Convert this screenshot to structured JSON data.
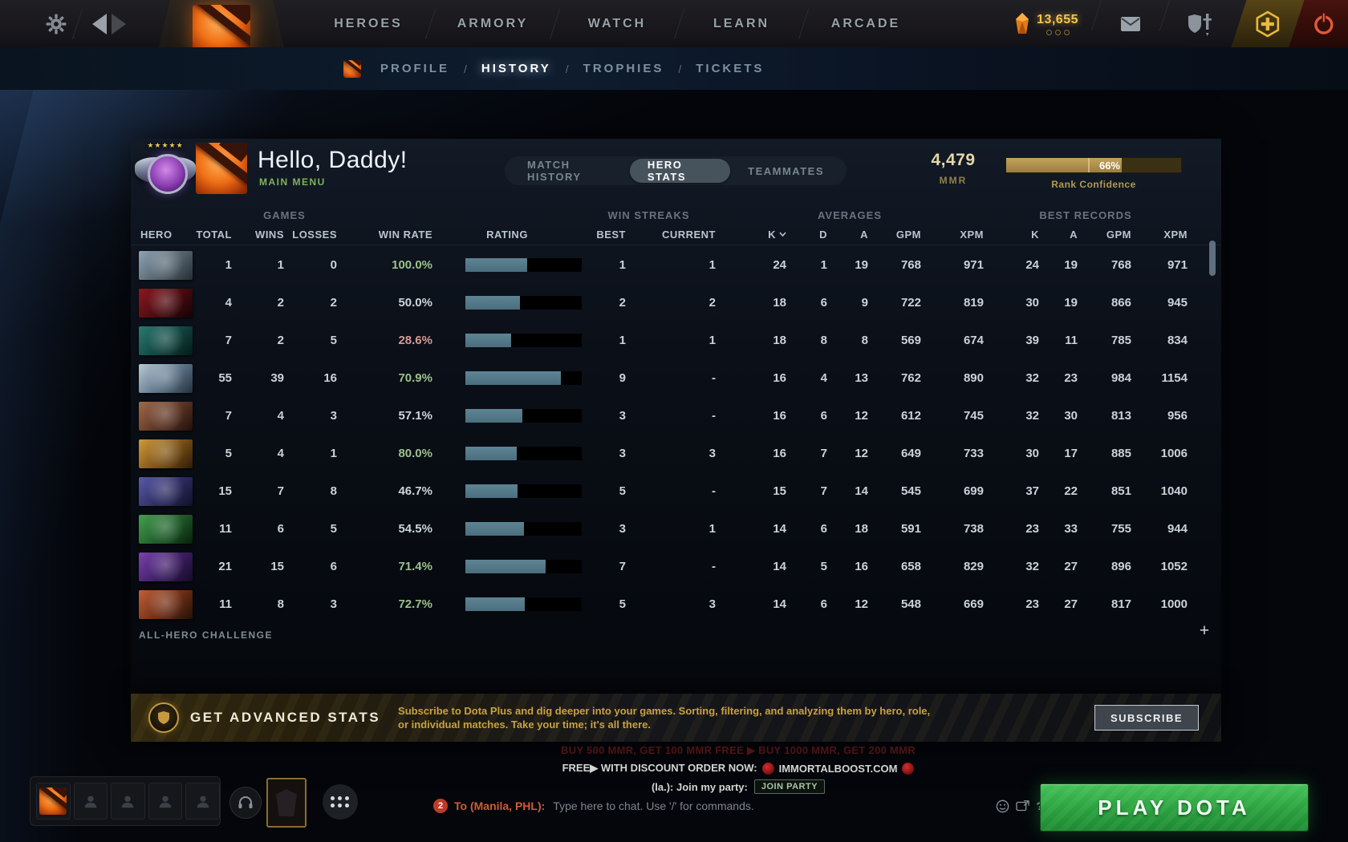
{
  "topbar": {
    "nav": [
      {
        "label": "HEROES"
      },
      {
        "label": "ARMORY"
      },
      {
        "label": "WATCH"
      },
      {
        "label": "LEARN"
      },
      {
        "label": "ARCADE"
      }
    ],
    "currency_amount": "13,655"
  },
  "subnav": {
    "separator": "/",
    "items": [
      {
        "label": "PROFILE",
        "active": false
      },
      {
        "label": "HISTORY",
        "active": true
      },
      {
        "label": "TROPHIES",
        "active": false
      },
      {
        "label": "TICKETS",
        "active": false
      }
    ]
  },
  "profile": {
    "greeting": "Hello, Daddy!",
    "subtitle": "MAIN MENU"
  },
  "tabs": [
    {
      "label": "MATCH HISTORY",
      "active": false
    },
    {
      "label": "HERO STATS",
      "active": true
    },
    {
      "label": "TEAMMATES",
      "active": false
    }
  ],
  "mmr": {
    "value": "4,479",
    "label": "MMR"
  },
  "rank_confidence": {
    "percent": "66%",
    "label": "Rank Confidence",
    "fill": 0.66
  },
  "table": {
    "groups": [
      "GAMES",
      "WIN STREAKS",
      "AVERAGES",
      "BEST RECORDS"
    ],
    "columns": [
      "HERO",
      "TOTAL",
      "WINS",
      "LOSSES",
      "WIN RATE",
      "RATING",
      "BEST",
      "CURRENT",
      "K",
      "D",
      "A",
      "GPM",
      "XPM",
      "K",
      "A",
      "GPM",
      "XPM"
    ],
    "sorted_column": "K",
    "rows": [
      {
        "portrait": [
          "#8fa3b5",
          "#54646f",
          "#262d33"
        ],
        "total": "1",
        "wins": "1",
        "losses": "0",
        "win_rate": "100.0%",
        "win_rate_tone": "green",
        "rating_fill": 0.53,
        "best": "1",
        "current": "1",
        "k": "24",
        "d": "1",
        "a": "19",
        "gpm": "768",
        "xpm": "971",
        "rk": "24",
        "ra": "19",
        "rgpm": "768",
        "rxpm": "971"
      },
      {
        "portrait": [
          "#8a1820",
          "#4a0a10",
          "#120305"
        ],
        "total": "4",
        "wins": "2",
        "losses": "2",
        "win_rate": "50.0%",
        "win_rate_tone": "neutral",
        "rating_fill": 0.47,
        "best": "2",
        "current": "2",
        "k": "18",
        "d": "6",
        "a": "9",
        "gpm": "722",
        "xpm": "819",
        "rk": "30",
        "ra": "19",
        "rgpm": "866",
        "rxpm": "945"
      },
      {
        "portrait": [
          "#2b7a72",
          "#114540",
          "#051a18"
        ],
        "total": "7",
        "wins": "2",
        "losses": "5",
        "win_rate": "28.6%",
        "win_rate_tone": "red",
        "rating_fill": 0.39,
        "best": "1",
        "current": "1",
        "k": "18",
        "d": "8",
        "a": "8",
        "gpm": "569",
        "xpm": "674",
        "rk": "39",
        "ra": "11",
        "rgpm": "785",
        "rxpm": "834"
      },
      {
        "portrait": [
          "#b9c9d6",
          "#5d7488",
          "#23303d"
        ],
        "total": "55",
        "wins": "39",
        "losses": "16",
        "win_rate": "70.9%",
        "win_rate_tone": "green",
        "rating_fill": 0.82,
        "best": "9",
        "current": "-",
        "k": "16",
        "d": "4",
        "a": "13",
        "gpm": "762",
        "xpm": "890",
        "rk": "32",
        "ra": "23",
        "rgpm": "984",
        "rxpm": "1154"
      },
      {
        "portrait": [
          "#a06a4a",
          "#5c3424",
          "#20100a"
        ],
        "total": "7",
        "wins": "4",
        "losses": "3",
        "win_rate": "57.1%",
        "win_rate_tone": "neutral",
        "rating_fill": 0.49,
        "best": "3",
        "current": "-",
        "k": "16",
        "d": "6",
        "a": "12",
        "gpm": "612",
        "xpm": "745",
        "rk": "32",
        "ra": "30",
        "rgpm": "813",
        "rxpm": "956"
      },
      {
        "portrait": [
          "#d29a3a",
          "#7a5015",
          "#2e1c06"
        ],
        "total": "5",
        "wins": "4",
        "losses": "1",
        "win_rate": "80.0%",
        "win_rate_tone": "green",
        "rating_fill": 0.44,
        "best": "3",
        "current": "3",
        "k": "16",
        "d": "7",
        "a": "12",
        "gpm": "649",
        "xpm": "733",
        "rk": "30",
        "ra": "17",
        "rgpm": "885",
        "rxpm": "1006"
      },
      {
        "portrait": [
          "#5a5aa8",
          "#2c2c62",
          "#101028"
        ],
        "total": "15",
        "wins": "7",
        "losses": "8",
        "win_rate": "46.7%",
        "win_rate_tone": "neutral",
        "rating_fill": 0.45,
        "best": "5",
        "current": "-",
        "k": "15",
        "d": "7",
        "a": "14",
        "gpm": "545",
        "xpm": "699",
        "rk": "37",
        "ra": "22",
        "rgpm": "851",
        "rxpm": "1040"
      },
      {
        "portrait": [
          "#45a050",
          "#1d5c28",
          "#08200c"
        ],
        "total": "11",
        "wins": "6",
        "losses": "5",
        "win_rate": "54.5%",
        "win_rate_tone": "neutral",
        "rating_fill": 0.5,
        "best": "3",
        "current": "1",
        "k": "14",
        "d": "6",
        "a": "18",
        "gpm": "591",
        "xpm": "738",
        "rk": "23",
        "ra": "33",
        "rgpm": "755",
        "rxpm": "944"
      },
      {
        "portrait": [
          "#7a42b0",
          "#3d1e62",
          "#150a28"
        ],
        "total": "21",
        "wins": "15",
        "losses": "6",
        "win_rate": "71.4%",
        "win_rate_tone": "green",
        "rating_fill": 0.69,
        "best": "7",
        "current": "-",
        "k": "14",
        "d": "5",
        "a": "16",
        "gpm": "658",
        "xpm": "829",
        "rk": "32",
        "ra": "27",
        "rgpm": "896",
        "rxpm": "1052"
      },
      {
        "portrait": [
          "#c06038",
          "#6e2e16",
          "#251006"
        ],
        "total": "11",
        "wins": "8",
        "losses": "3",
        "win_rate": "72.7%",
        "win_rate_tone": "green",
        "rating_fill": 0.51,
        "best": "5",
        "current": "3",
        "k": "14",
        "d": "6",
        "a": "12",
        "gpm": "548",
        "xpm": "669",
        "rk": "23",
        "ra": "27",
        "rgpm": "817",
        "rxpm": "1000"
      }
    ]
  },
  "all_hero_challenge": "ALL-HERO CHALLENGE",
  "plus_button": "+",
  "banner": {
    "title": "GET ADVANCED STATS",
    "description": "Subscribe to Dota Plus and dig deeper into your games. Sorting, filtering, and analyzing them by hero, role, or individual matches. Take your time; it's all there.",
    "button": "SUBSCRIBE"
  },
  "bottom": {
    "chat": {
      "spam_line": "BUY 500 MMR, GET 100 MMR FREE ▶ BUY 1000 MMR, GET 200 MMR",
      "promo_prefix": "FREE▶ WITH DISCOUNT ORDER NOW:",
      "promo_domain": "IMMORTALBOOST.COM",
      "party_prefix": "(la.): Join my party:",
      "join_button": "JOIN PARTY",
      "unread_count": "2",
      "to_label": "To (Manila, PHL):",
      "input_placeholder": "Type here to chat. Use '/' for commands.",
      "help": "?"
    },
    "play_button": "PLAY DOTA"
  },
  "colors": {
    "accent_gold": "#c59a3e",
    "confidence_fill": "#ab8d4a",
    "rating_fill": "#547b8b",
    "win_green": "#9cc18b",
    "win_red": "#d69c96",
    "play_green": "#2aa03e",
    "mmr_gold": "#e6d8a6",
    "main_menu_green": "#7fb25c"
  },
  "icons": [
    "gear",
    "nav-back",
    "nav-forward",
    "dota-logo",
    "shard-currency",
    "mail",
    "armory-shield-sword",
    "dota-plus-hex",
    "power",
    "sort-chevron",
    "rank-medal",
    "person-silhouette",
    "headset",
    "guild-emblem",
    "friends-grid",
    "emote-red",
    "smiley",
    "chat-popout",
    "help"
  ]
}
